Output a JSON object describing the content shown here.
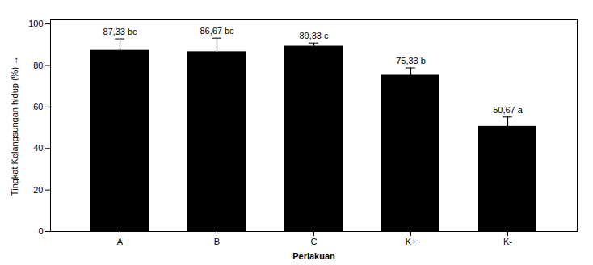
{
  "chart_data": {
    "type": "bar",
    "xlabel": "Perlakuan",
    "ylabel": "Tingkat Kelangsungan hidup (%)",
    "categories": [
      "A",
      "B",
      "C",
      "K+",
      "K-"
    ],
    "values": [
      87.33,
      86.67,
      89.33,
      75.33,
      50.67
    ],
    "errors": [
      5.5,
      6.5,
      1.5,
      3.5,
      4.5
    ],
    "value_labels": [
      "87,33 bc",
      "86,67 bc",
      "89,33 c",
      "75,33 b",
      "50,67 a"
    ],
    "data_labels": true,
    "ylim": [
      0,
      102
    ],
    "yticks": [
      0,
      20,
      40,
      60,
      80,
      100
    ],
    "grid": false
  }
}
